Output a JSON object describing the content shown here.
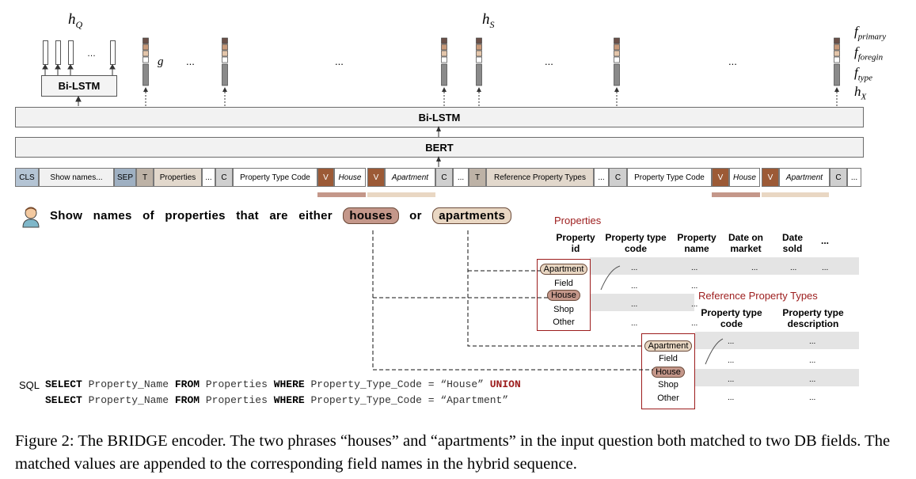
{
  "top_labels": {
    "hQ": "h",
    "hQ_sub": "Q",
    "hS": "h",
    "hS_sub": "S",
    "g": "g"
  },
  "right_labels": [
    {
      "main": "f",
      "sub": "primary"
    },
    {
      "main": "f",
      "sub": "foregin"
    },
    {
      "main": "f",
      "sub": "type"
    },
    {
      "main": "h",
      "sub": "X"
    }
  ],
  "ellipsis": "...",
  "ellipsis_small": "…",
  "bilstm_small": "Bi-LSTM",
  "bilstm_big": "Bi-LSTM",
  "bert": "BERT",
  "tokens": [
    "CLS",
    "Show names...",
    "SEP",
    "T",
    "Properties",
    "...",
    "C",
    "Property Type Code",
    "V",
    "House",
    "V",
    "Apartment",
    "C",
    "...",
    "T",
    "Reference Property Types",
    "...",
    "C",
    "Property Type Code",
    "V",
    "House",
    "V",
    "Apartment",
    "C",
    "..."
  ],
  "question": {
    "words_before": "Show names of properties that are either",
    "match1": "houses",
    "mid": "or",
    "match2": "apartments"
  },
  "colors": {
    "house": "#c4978a",
    "apartment": "#e9d7c3",
    "cls": "#b4c4d4",
    "sep": "#9fb0c2",
    "t": "#bdb2a6",
    "c": "#cfcfcf",
    "props": "#e2d8cc",
    "v": "#9c5a36",
    "red": "#9c1c1c"
  },
  "table1": {
    "title": "Properties",
    "headers": [
      "Property id",
      "Property type code",
      "Property name",
      "Date on market",
      "Date sold",
      "..."
    ],
    "cell": "..."
  },
  "table2": {
    "title": "Reference Property Types",
    "headers": [
      "Property type code",
      "Property type description"
    ],
    "cell": "..."
  },
  "popup_values": [
    "Apartment",
    "Field",
    "House",
    "Shop",
    "Other"
  ],
  "sql": {
    "label": "SQL",
    "line1": [
      {
        "t": "SELECT",
        "k": true
      },
      {
        "t": " Property_Name ",
        "k": false
      },
      {
        "t": "FROM",
        "k": true
      },
      {
        "t": " Properties ",
        "k": false
      },
      {
        "t": "WHERE",
        "k": true
      },
      {
        "t": " Property_Type_Code = “House” ",
        "k": false
      },
      {
        "t": "UNION",
        "u": true
      }
    ],
    "line2": [
      {
        "t": "SELECT",
        "k": true
      },
      {
        "t": " Property_Name ",
        "k": false
      },
      {
        "t": "FROM",
        "k": true
      },
      {
        "t": " Properties ",
        "k": false
      },
      {
        "t": "WHERE",
        "k": true
      },
      {
        "t": " Property_Type_Code = “Apartment”",
        "k": false
      }
    ]
  },
  "caption": "Figure 2: The BRIDGE encoder. The two phrases “houses” and “apartments” in the input question both matched to two DB fields. The matched values are appended to the corresponding field names in the hybrid sequence."
}
